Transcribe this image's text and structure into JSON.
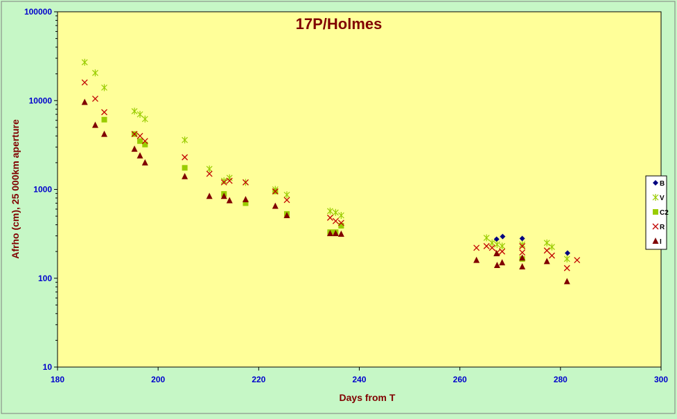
{
  "chart_data": {
    "type": "scatter",
    "title": "17P/Holmes",
    "xlabel": "Days from T",
    "ylabel": "Afrho (cm), 25 000km aperture",
    "xlim": [
      180,
      300
    ],
    "ylim": [
      10,
      100000
    ],
    "yscale": "log",
    "x_ticks": [
      "180",
      "200",
      "220",
      "240",
      "260",
      "280",
      "300"
    ],
    "y_ticks": [
      "10",
      "100",
      "1000",
      "10000",
      "100000"
    ],
    "grid": false,
    "legend_position": "right",
    "colors": {
      "background": "#c6f7c6",
      "plot_area": "#ffff99",
      "title": "#800000",
      "axis_label": "#800000",
      "tick_label": "#0000cc",
      "B": "#000080",
      "V": "#99cc00",
      "C2": "#99cc00",
      "R": "#c00000",
      "I": "#800000"
    },
    "series": [
      {
        "name": "B",
        "marker": "diamond",
        "points": [
          [
            267.3,
            275
          ],
          [
            268.5,
            295
          ],
          [
            272.4,
            280
          ],
          [
            281.4,
            192
          ]
        ]
      },
      {
        "name": "V",
        "marker": "asterisk",
        "points": [
          [
            185.4,
            27000
          ],
          [
            187.5,
            20500
          ],
          [
            189.3,
            14000
          ],
          [
            195.3,
            7600
          ],
          [
            196.4,
            7000
          ],
          [
            197.4,
            6200
          ],
          [
            205.3,
            3600
          ],
          [
            210.2,
            1700
          ],
          [
            213.1,
            1250
          ],
          [
            214.2,
            1350
          ],
          [
            217.4,
            1200
          ],
          [
            223.3,
            1000
          ],
          [
            225.6,
            870
          ],
          [
            234.2,
            570
          ],
          [
            235.3,
            550
          ],
          [
            236.4,
            510
          ],
          [
            265.3,
            285
          ],
          [
            266.4,
            250
          ],
          [
            267.4,
            240
          ],
          [
            268.4,
            230
          ],
          [
            272.4,
            240
          ],
          [
            277.3,
            250
          ],
          [
            278.3,
            225
          ],
          [
            281.3,
            165
          ]
        ]
      },
      {
        "name": "C2",
        "marker": "square",
        "points": [
          [
            189.3,
            6100
          ],
          [
            195.3,
            4200
          ],
          [
            196.4,
            3500
          ],
          [
            197.4,
            3200
          ],
          [
            205.3,
            1750
          ],
          [
            213.1,
            890
          ],
          [
            217.4,
            700
          ],
          [
            223.3,
            950
          ],
          [
            225.6,
            530
          ],
          [
            234.2,
            330
          ],
          [
            235.3,
            330
          ],
          [
            236.4,
            390
          ],
          [
            272.4,
            165
          ]
        ]
      },
      {
        "name": "R",
        "marker": "cross",
        "points": [
          [
            185.4,
            16000
          ],
          [
            187.5,
            10500
          ],
          [
            189.3,
            7400
          ],
          [
            195.3,
            4200
          ],
          [
            196.4,
            4000
          ],
          [
            197.4,
            3500
          ],
          [
            205.3,
            2300
          ],
          [
            210.2,
            1500
          ],
          [
            213.1,
            1200
          ],
          [
            214.2,
            1250
          ],
          [
            217.4,
            1200
          ],
          [
            223.3,
            950
          ],
          [
            225.6,
            760
          ],
          [
            234.2,
            480
          ],
          [
            235.3,
            440
          ],
          [
            236.4,
            420
          ],
          [
            263.3,
            220
          ],
          [
            265.3,
            230
          ],
          [
            266.4,
            220
          ],
          [
            267.4,
            195
          ],
          [
            268.4,
            200
          ],
          [
            272.4,
            230
          ],
          [
            272.4,
            195
          ],
          [
            277.3,
            205
          ],
          [
            278.3,
            180
          ],
          [
            281.3,
            130
          ],
          [
            283.3,
            160
          ]
        ]
      },
      {
        "name": "I",
        "marker": "triangle",
        "points": [
          [
            185.4,
            9600
          ],
          [
            187.5,
            5300
          ],
          [
            189.3,
            4200
          ],
          [
            195.3,
            2850
          ],
          [
            196.4,
            2400
          ],
          [
            197.4,
            2000
          ],
          [
            205.3,
            1400
          ],
          [
            210.2,
            840
          ],
          [
            213.1,
            840
          ],
          [
            214.2,
            750
          ],
          [
            217.4,
            770
          ],
          [
            223.3,
            650
          ],
          [
            225.6,
            510
          ],
          [
            234.2,
            320
          ],
          [
            235.3,
            320
          ],
          [
            236.4,
            315
          ],
          [
            263.3,
            160
          ],
          [
            267.3,
            190
          ],
          [
            267.4,
            140
          ],
          [
            268.4,
            150
          ],
          [
            272.4,
            170
          ],
          [
            272.4,
            135
          ],
          [
            277.3,
            155
          ],
          [
            281.3,
            92
          ]
        ]
      }
    ]
  }
}
